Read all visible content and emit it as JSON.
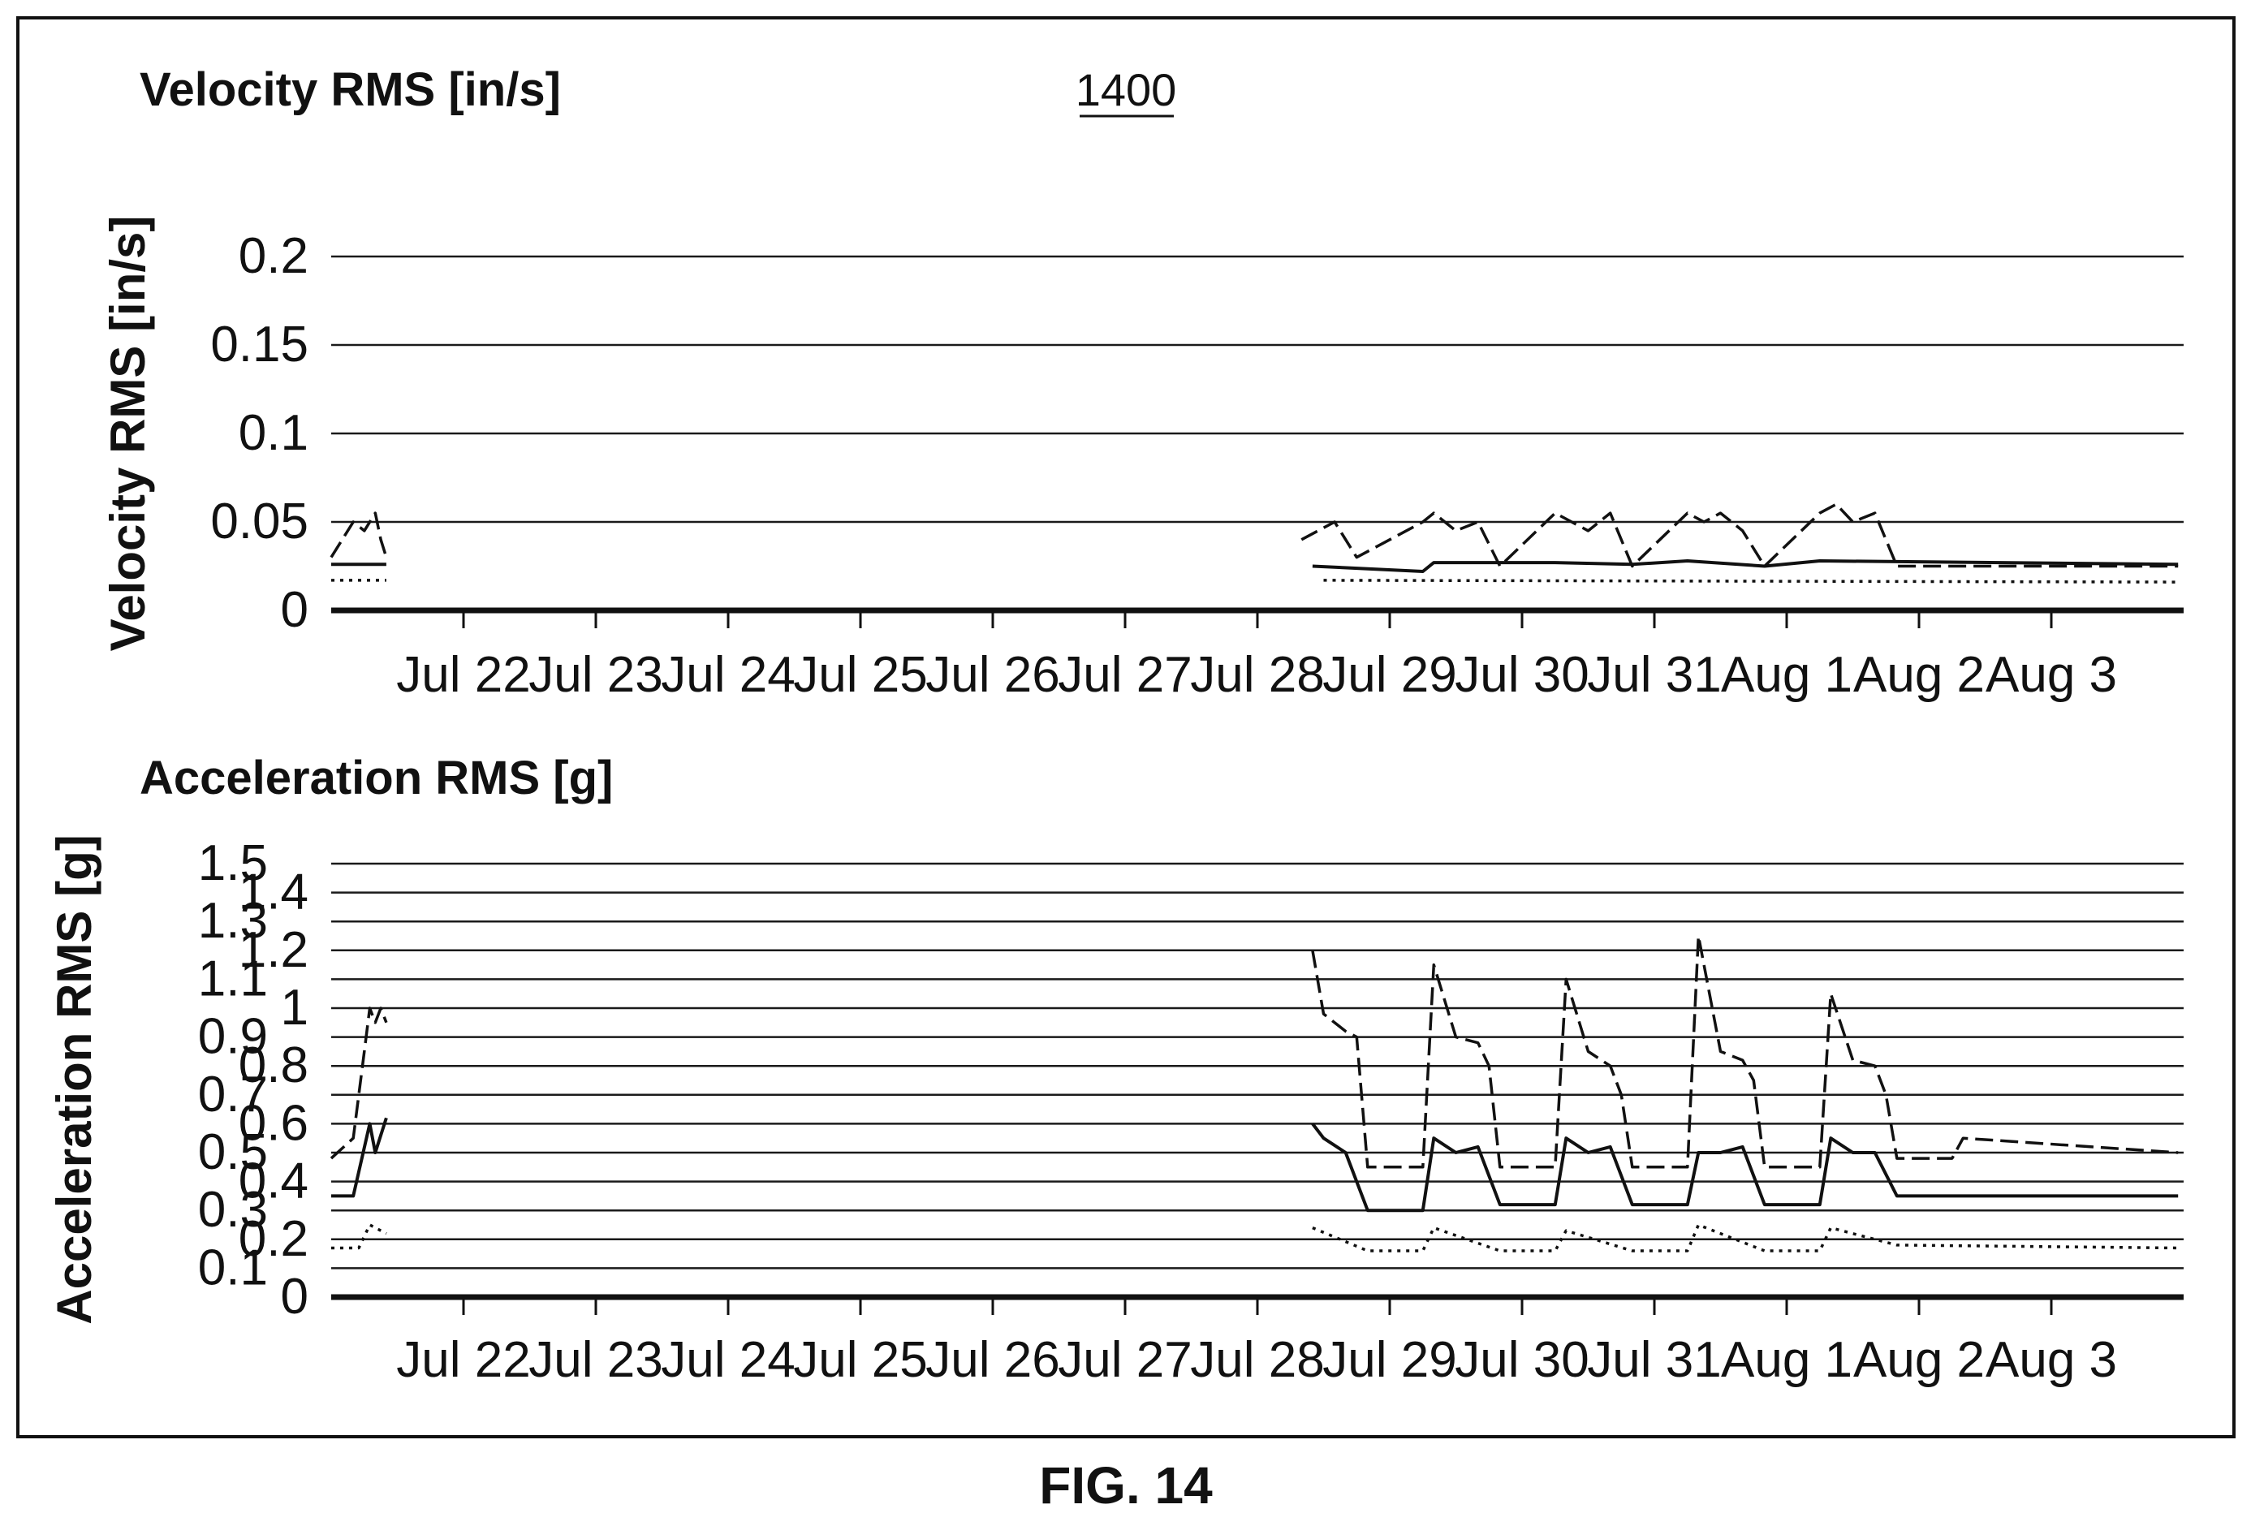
{
  "figure_label": "FIG. 14",
  "reference_numeral": "1400",
  "chart_data": [
    {
      "type": "line",
      "title": "Velocity RMS [in/s]",
      "ylabel": "Velocity RMS [in/s]",
      "xlabel": "",
      "ylim": [
        0,
        0.2
      ],
      "y_ticks": [
        "0",
        "0.05",
        "0.1",
        "0.15",
        "0.2"
      ],
      "x_start": "Jul 21",
      "x_end": "Aug 4",
      "x_ticks": [
        "Jul 22",
        "Jul 23",
        "Jul 24",
        "Jul 25",
        "Jul 26",
        "Jul 27",
        "Jul 28",
        "Jul 29",
        "Jul 30",
        "Jul 31",
        "Aug 1",
        "Aug 2",
        "Aug 3"
      ],
      "grid": true,
      "legend": "none",
      "series": [
        {
          "style": "dashed",
          "segments": [
            {
              "x": [
                "Jul 21 00:00",
                "Jul 21 04:00",
                "Jul 21 06:00",
                "Jul 21 08:00",
                "Jul 21 09:00",
                "Jul 21 10:00"
              ],
              "y": [
                0.03,
                0.05,
                0.045,
                0.055,
                0.04,
                0.03
              ]
            },
            {
              "x": [
                "Jul 28 08:00",
                "Jul 28 14:00",
                "Jul 28 18:00",
                "Jul 29 06:00",
                "Jul 29 08:00",
                "Jul 29 12:00",
                "Jul 29 16:00",
                "Jul 29 20:00",
                "Jul 30 06:00",
                "Jul 30 09:00",
                "Jul 30 12:00",
                "Jul 30 16:00",
                "Jul 30 20:00",
                "Jul 31 06:00",
                "Jul 31 09:00",
                "Jul 31 12:00",
                "Jul 31 16:00",
                "Jul 31 20:00",
                "Aug 1 06:00",
                "Aug 1 09:00",
                "Aug 1 12:00",
                "Aug 1 16:00",
                "Aug 1 20:00",
                "Aug 3 23:00"
              ],
              "y": [
                0.04,
                0.05,
                0.03,
                0.05,
                0.055,
                0.045,
                0.05,
                0.025,
                0.055,
                0.05,
                0.045,
                0.055,
                0.025,
                0.055,
                0.05,
                0.055,
                0.045,
                0.025,
                0.055,
                0.06,
                0.05,
                0.055,
                0.025,
                0.025
              ]
            }
          ]
        },
        {
          "style": "solid",
          "segments": [
            {
              "x": [
                "Jul 21 00:00",
                "Jul 21 10:00"
              ],
              "y": [
                0.026,
                0.026
              ]
            },
            {
              "x": [
                "Jul 28 10:00",
                "Jul 29 06:00",
                "Jul 29 08:00",
                "Jul 29 20:00",
                "Jul 30 06:00",
                "Jul 30 20:00",
                "Jul 31 06:00",
                "Jul 31 20:00",
                "Aug 1 06:00",
                "Aug 3 23:00"
              ],
              "y": [
                0.025,
                0.022,
                0.027,
                0.027,
                0.027,
                0.026,
                0.028,
                0.025,
                0.028,
                0.026
              ]
            }
          ]
        },
        {
          "style": "dotted",
          "segments": [
            {
              "x": [
                "Jul 21 00:00",
                "Jul 21 10:00"
              ],
              "y": [
                0.017,
                0.017
              ]
            },
            {
              "x": [
                "Jul 28 12:00",
                "Aug 3 23:00"
              ],
              "y": [
                0.017,
                0.016
              ]
            }
          ]
        }
      ]
    },
    {
      "type": "line",
      "title": "Acceleration RMS [g]",
      "ylabel": "Acceleration RMS [g]",
      "xlabel": "",
      "ylim": [
        0,
        1.6
      ],
      "y_ticks": [
        "0",
        "0.1",
        "0.2",
        "0.3",
        "0.4",
        "0.5",
        "0.6",
        "0.7",
        "0.8",
        "0.9",
        "1",
        "1.1",
        "1.2",
        "1.3",
        "1.4",
        "1.5"
      ],
      "x_start": "Jul 21",
      "x_end": "Aug 4",
      "x_ticks": [
        "Jul 22",
        "Jul 23",
        "Jul 24",
        "Jul 25",
        "Jul 26",
        "Jul 27",
        "Jul 28",
        "Jul 29",
        "Jul 30",
        "Jul 31",
        "Aug 1",
        "Aug 2",
        "Aug 3"
      ],
      "grid": true,
      "legend": "none",
      "series": [
        {
          "style": "dashed",
          "segments": [
            {
              "x": [
                "Jul 21 00:00",
                "Jul 21 04:00",
                "Jul 21 06:00",
                "Jul 21 07:00",
                "Jul 21 08:00",
                "Jul 21 09:00",
                "Jul 21 10:00"
              ],
              "y": [
                0.48,
                0.55,
                0.85,
                1.0,
                0.95,
                1.0,
                0.95
              ]
            },
            {
              "x": [
                "Jul 28 10:00",
                "Jul 28 12:00",
                "Jul 28 16:00",
                "Jul 28 18:00",
                "Jul 28 20:00",
                "Jul 29 06:00",
                "Jul 29 08:00",
                "Jul 29 12:00",
                "Jul 29 16:00",
                "Jul 29 18:00",
                "Jul 29 20:00",
                "Jul 30 06:00",
                "Jul 30 08:00",
                "Jul 30 12:00",
                "Jul 30 16:00",
                "Jul 30 18:00",
                "Jul 30 20:00",
                "Jul 31 06:00",
                "Jul 31 08:00",
                "Jul 31 12:00",
                "Jul 31 16:00",
                "Jul 31 18:00",
                "Jul 31 20:00",
                "Aug 1 06:00",
                "Aug 1 08:00",
                "Aug 1 12:00",
                "Aug 1 16:00",
                "Aug 1 18:00",
                "Aug 1 20:00",
                "Aug 2 06:00",
                "Aug 2 08:00",
                "Aug 3 23:00"
              ],
              "y": [
                1.2,
                0.98,
                0.92,
                0.9,
                0.45,
                0.45,
                1.15,
                0.9,
                0.88,
                0.8,
                0.45,
                0.45,
                1.1,
                0.85,
                0.8,
                0.7,
                0.45,
                0.45,
                1.25,
                0.85,
                0.82,
                0.75,
                0.45,
                0.45,
                1.05,
                0.82,
                0.8,
                0.7,
                0.48,
                0.48,
                0.55,
                0.5
              ]
            }
          ]
        },
        {
          "style": "solid",
          "segments": [
            {
              "x": [
                "Jul 21 00:00",
                "Jul 21 04:00",
                "Jul 21 07:00",
                "Jul 21 08:00",
                "Jul 21 10:00"
              ],
              "y": [
                0.35,
                0.35,
                0.6,
                0.5,
                0.62
              ]
            },
            {
              "x": [
                "Jul 28 10:00",
                "Jul 28 12:00",
                "Jul 28 16:00",
                "Jul 28 20:00",
                "Jul 29 06:00",
                "Jul 29 08:00",
                "Jul 29 12:00",
                "Jul 29 16:00",
                "Jul 29 20:00",
                "Jul 30 06:00",
                "Jul 30 08:00",
                "Jul 30 12:00",
                "Jul 30 16:00",
                "Jul 30 20:00",
                "Jul 31 06:00",
                "Jul 31 08:00",
                "Jul 31 12:00",
                "Jul 31 16:00",
                "Jul 31 20:00",
                "Aug 1 06:00",
                "Aug 1 08:00",
                "Aug 1 12:00",
                "Aug 1 16:00",
                "Aug 1 20:00",
                "Aug 3 23:00"
              ],
              "y": [
                0.6,
                0.55,
                0.5,
                0.3,
                0.3,
                0.55,
                0.5,
                0.52,
                0.32,
                0.32,
                0.55,
                0.5,
                0.52,
                0.32,
                0.32,
                0.5,
                0.5,
                0.52,
                0.32,
                0.32,
                0.55,
                0.5,
                0.5,
                0.35,
                0.35
              ]
            }
          ]
        },
        {
          "style": "dotted",
          "segments": [
            {
              "x": [
                "Jul 21 00:00",
                "Jul 21 05:00",
                "Jul 21 07:00",
                "Jul 21 10:00"
              ],
              "y": [
                0.17,
                0.17,
                0.25,
                0.22
              ]
            },
            {
              "x": [
                "Jul 28 10:00",
                "Jul 28 20:00",
                "Jul 29 06:00",
                "Jul 29 08:00",
                "Jul 29 20:00",
                "Jul 30 06:00",
                "Jul 30 08:00",
                "Jul 30 20:00",
                "Jul 31 06:00",
                "Jul 31 08:00",
                "Jul 31 20:00",
                "Aug 1 06:00",
                "Aug 1 08:00",
                "Aug 1 20:00",
                "Aug 3 23:00"
              ],
              "y": [
                0.24,
                0.16,
                0.16,
                0.24,
                0.16,
                0.16,
                0.23,
                0.16,
                0.16,
                0.25,
                0.16,
                0.16,
                0.24,
                0.18,
                0.17
              ]
            }
          ]
        }
      ]
    }
  ]
}
